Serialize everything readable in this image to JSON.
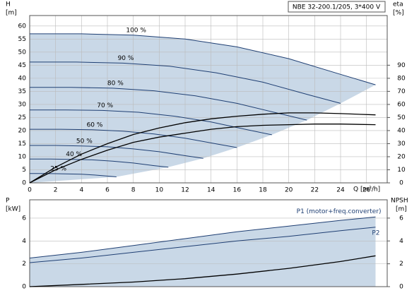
{
  "chart_data": [
    {
      "type": "line",
      "title": "NBE 32-200.1/205, 3*400 V",
      "x_label": "Q [m³/h]",
      "y_label": "H",
      "y_unit": "[m]",
      "y2_label": "eta",
      "y2_unit": "[%]",
      "xlim": [
        0,
        27.6
      ],
      "xticks": [
        0,
        2,
        4,
        6,
        8,
        10,
        12,
        14,
        16,
        18,
        20,
        22,
        24,
        26
      ],
      "ylim": [
        0,
        64
      ],
      "yticks": [
        0,
        5,
        10,
        15,
        20,
        25,
        30,
        35,
        40,
        45,
        50,
        55,
        60
      ],
      "y2lim": [
        0,
        128
      ],
      "y2ticks": [
        0,
        10,
        20,
        30,
        40,
        50,
        60,
        70,
        80,
        90
      ],
      "grid": true,
      "fill_color": "#c9d8e7",
      "series": [
        {
          "name": "100 %",
          "color": "#1f3f73",
          "x": [
            0,
            4,
            8,
            12,
            16,
            20,
            24,
            26.7
          ],
          "values": [
            57,
            57,
            56.5,
            55,
            52,
            47.5,
            41.5,
            37.5
          ]
        },
        {
          "name": "90 %",
          "color": "#1f3f73",
          "x": [
            0,
            3.6,
            7.2,
            10.8,
            14.4,
            18,
            21.6,
            24
          ],
          "values": [
            46.2,
            46.2,
            45.8,
            44.6,
            42.1,
            38.5,
            33.6,
            30.4
          ]
        },
        {
          "name": "80 %",
          "color": "#1f3f73",
          "x": [
            0,
            3.2,
            6.4,
            9.6,
            12.8,
            16,
            19.2,
            21.4
          ],
          "values": [
            36.5,
            36.5,
            36.2,
            35.2,
            33.3,
            30.4,
            26.6,
            24
          ]
        },
        {
          "name": "70 %",
          "color": "#1f3f73",
          "x": [
            0,
            2.8,
            5.6,
            8.4,
            11.2,
            14,
            16.8,
            18.7
          ],
          "values": [
            27.9,
            27.9,
            27.7,
            27,
            25.5,
            23.3,
            20.3,
            18.4
          ]
        },
        {
          "name": "60 %",
          "color": "#1f3f73",
          "x": [
            0,
            2.4,
            4.8,
            7.2,
            9.6,
            12,
            14.4,
            16
          ],
          "values": [
            20.5,
            20.5,
            20.3,
            19.8,
            18.7,
            17.1,
            14.9,
            13.5
          ]
        },
        {
          "name": "50 %",
          "color": "#1f3f73",
          "x": [
            0,
            2,
            4,
            6,
            8,
            10,
            12,
            13.4
          ],
          "values": [
            14.3,
            14.3,
            14.1,
            13.8,
            13,
            11.9,
            10.4,
            9.4
          ]
        },
        {
          "name": "40 %",
          "color": "#1f3f73",
          "x": [
            0,
            1.6,
            3.2,
            4.8,
            6.4,
            8,
            9.6,
            10.7
          ],
          "values": [
            9.1,
            9.1,
            9,
            8.8,
            8.3,
            7.6,
            6.6,
            6
          ]
        },
        {
          "name": "25 %",
          "color": "#1f3f73",
          "x": [
            0,
            1,
            2,
            3,
            4,
            5,
            6,
            6.7
          ],
          "values": [
            3.6,
            3.6,
            3.5,
            3.4,
            3.3,
            3,
            2.6,
            2.3
          ]
        },
        {
          "color": "#000000",
          "axis": "y2",
          "x": [
            0,
            2,
            4,
            6,
            8,
            10,
            12,
            14,
            16,
            18,
            20,
            22,
            24,
            26.7
          ],
          "values": [
            0,
            12,
            22,
            30,
            37,
            42,
            46,
            49,
            51,
            52.5,
            53.5,
            53.5,
            53,
            52
          ]
        },
        {
          "color": "#000000",
          "axis": "y2",
          "x": [
            0,
            2,
            4,
            6,
            8,
            10,
            12,
            14,
            16,
            18,
            20,
            22,
            24,
            26.7
          ],
          "values": [
            0,
            10,
            18,
            25,
            31,
            35,
            38,
            41,
            43,
            44,
            44.5,
            45,
            45,
            44.5
          ]
        }
      ]
    },
    {
      "type": "line",
      "y_label": "P",
      "y_unit": "[kW]",
      "y2_label": "NPSH",
      "y2_unit": "[m]",
      "xlim": [
        0,
        27.6
      ],
      "ylim": [
        0,
        7.6
      ],
      "yticks": [
        0,
        2,
        4,
        6
      ],
      "y2lim": [
        0,
        7.6
      ],
      "y2ticks": [
        0,
        2,
        4,
        6
      ],
      "grid": true,
      "fill_color": "#c9d8e7",
      "series": [
        {
          "name": "P1 (motor+freq.converter)",
          "color": "#1f3f73",
          "x": [
            0,
            4,
            8,
            12,
            16,
            20,
            24,
            26.7
          ],
          "values": [
            2.5,
            3,
            3.6,
            4.2,
            4.8,
            5.3,
            5.8,
            6.1
          ]
        },
        {
          "name": "P2",
          "color": "#1f3f73",
          "x": [
            0,
            4,
            8,
            12,
            16,
            20,
            24,
            26.7
          ],
          "values": [
            2.1,
            2.5,
            3,
            3.5,
            4,
            4.4,
            4.9,
            5.2
          ]
        },
        {
          "color": "#000000",
          "axis": "y2",
          "x": [
            0,
            4,
            8,
            12,
            16,
            20,
            24,
            26.7
          ],
          "values": [
            0,
            0.2,
            0.4,
            0.7,
            1.1,
            1.6,
            2.2,
            2.7
          ]
        }
      ]
    }
  ]
}
